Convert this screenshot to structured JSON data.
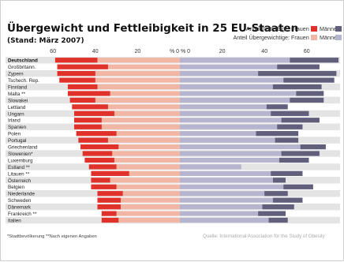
{
  "title": "Übergewicht und Fettleibigkeit in 25 EU-Staaten",
  "subtitle": "(Stand: März 2007)",
  "legend": {
    "obesity_label": "Anteil Fettleibige:",
    "overweight_label": "Anteil Übergewichtige:",
    "women": "Frauen",
    "men": "Männer"
  },
  "axis": {
    "left_ticks": [
      "60",
      "40",
      "20",
      "% 0"
    ],
    "right_ticks": [
      "% 0",
      "20",
      "40",
      "60"
    ]
  },
  "footnote": "*Stadtbevölkerung   **Nach eigenen Angaben",
  "source": "Quelle: International Association for the Study of Obesity",
  "colors": {
    "women_obese": "#e0312a",
    "women_overweight": "#f2b6a4",
    "men_obese": "#615f7b",
    "men_overweight": "#b6b5cf",
    "row_band": "#e4e4e4"
  },
  "chart_data": {
    "type": "bar",
    "orientation": "horizontal-diverging",
    "title": "Übergewicht und Fettleibigkeit in 25 EU-Staaten",
    "subtitle": "(Stand: März 2007)",
    "xlim": [
      -60,
      60
    ],
    "categories": [
      "Deutschland",
      "Großbritann.",
      "Zypern",
      "Tschech. Rep.",
      "Finnland",
      "Malta **",
      "Slowakei",
      "Lettland",
      "Ungarn",
      "Irland",
      "Spanien",
      "Polen",
      "Portugal",
      "Griechenland",
      "Slowenien*",
      "Luxemburg",
      "Estland **",
      "Litauen **",
      "Österreich",
      "Belgien",
      "Niederlande",
      "Schweden",
      "Dänemark",
      "Frankreich **",
      "Italien"
    ],
    "series": [
      {
        "name": "Anteil Fettleibige: Frauen",
        "values": [
          20,
          24,
          18,
          17,
          14,
          20,
          12,
          17,
          19,
          13,
          13,
          19,
          14,
          18,
          14,
          14,
          13,
          18,
          9,
          12,
          12,
          11,
          11,
          7,
          8
        ]
      },
      {
        "name": "Anteil Übergewichtige: Frauen",
        "values": [
          59,
          58,
          58,
          57,
          53,
          53,
          52,
          51,
          50,
          50,
          50,
          49,
          48,
          47,
          46,
          45,
          43,
          42,
          42,
          42,
          39,
          39,
          39,
          37,
          37
        ]
      },
      {
        "name": "Anteil Fettleibige: Männer",
        "values": [
          52,
          46,
          37,
          49,
          44,
          55,
          52,
          41,
          43,
          48,
          46,
          36,
          45,
          57,
          48,
          47,
          34,
          43,
          44,
          49,
          40,
          44,
          39,
          37,
          42
        ]
      },
      {
        "name": "Anteil Übergewichtige: Männer",
        "values": [
          75,
          66,
          74,
          73,
          67,
          68,
          68,
          51,
          61,
          66,
          58,
          56,
          56,
          69,
          66,
          61,
          29,
          58,
          50,
          63,
          51,
          58,
          54,
          50,
          51
        ]
      }
    ]
  }
}
